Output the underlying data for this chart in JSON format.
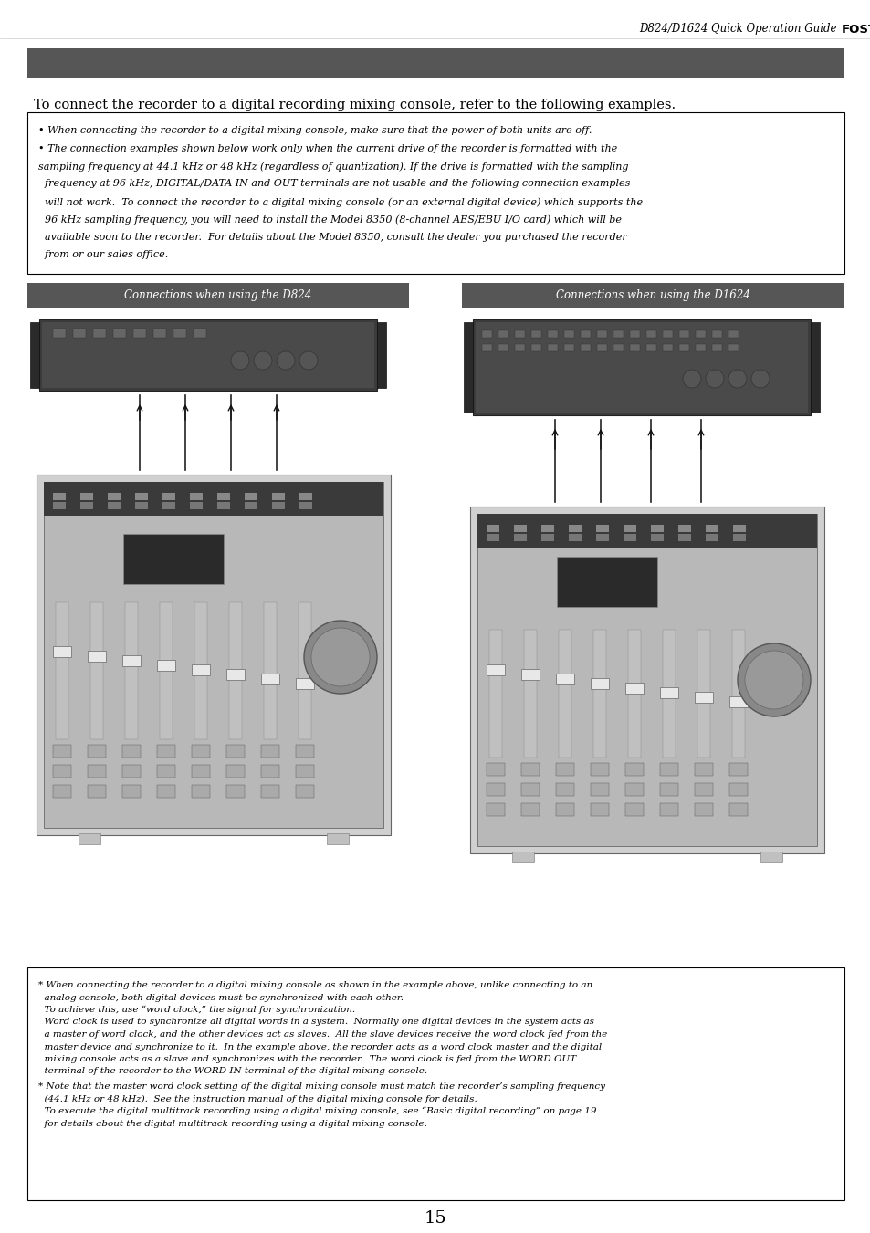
{
  "header_text": "D824/D1624 Quick Operation Guide ",
  "header_brand": "FOSTEX",
  "page_number": "15",
  "intro_text": "To connect the recorder to a digital recording mixing console, refer to the following examples.",
  "caution_line1": "• When connecting the recorder to a digital mixing console, make sure that the power of both units are off.",
  "caution_line2": "• The connection examples shown below work only when the current drive of the recorder is formatted with the",
  "caution_line3": "sampling frequency at 44.1 kHz or 48 kHz (regardless of quantization). If the drive is formatted with the sampling",
  "caution_line4": "  frequency at 96 kHz, DIGITAL/DATA IN and OUT terminals are not usable and the following connection examples",
  "caution_line5": "  will not work.  To connect the recorder to a digital mixing console (or an external digital device) which supports the",
  "caution_line6": "  96 kHz sampling frequency, you will need to install the Model 8350 (8-channel AES/EBU I/O card) which will be",
  "caution_line7": "  available soon to the recorder.  For details about the Model 8350, consult the dealer you purchased the recorder",
  "caution_line8": "  from or our sales office.",
  "section_left_title": "Connections when using the D824",
  "section_right_title": "Connections when using the D1624",
  "note1_lines": [
    "* When connecting the recorder to a digital mixing console as shown in the example above, unlike connecting to an",
    "analog console, both digital devices must be synchronized with each other.",
    "To achieve this, use “word clock,” the signal for synchronization.",
    "Word clock is used to synchronize all digital words in a system.  Normally one digital devices in the system acts as",
    "a master of word clock, and the other devices act as slaves.  All the slave devices receive the word clock fed from the",
    "master device and synchronize to it.  In the example above, the recorder acts as a word clock master and the digital",
    "mixing console acts as a slave and synchronizes with the recorder.  The word clock is fed from the WORD OUT",
    "terminal of the recorder to the WORD IN terminal of the digital mixing console."
  ],
  "note2_lines": [
    "* Note that the master word clock setting of the digital mixing console must match the recorder’s sampling frequency",
    "(44.1 kHz or 48 kHz).  See the instruction manual of the digital mixing console for details.",
    "To execute the digital multitrack recording using a digital mixing console, see “Basic digital recording” on page 19",
    "for details about the digital multitrack recording using a digital mixing console."
  ],
  "bg_color": "#ffffff",
  "bar_color": "#565656",
  "border_color": "#000000",
  "text_color": "#000000",
  "white": "#ffffff",
  "light_gray": "#e8e8e8",
  "dark_gray": "#3a3a3a",
  "mid_gray": "#888888",
  "font_size_header": 8.5,
  "font_size_intro": 10.5,
  "font_size_caution": 8.0,
  "font_size_notes": 7.5,
  "font_size_section": 8.5,
  "font_size_page": 14
}
